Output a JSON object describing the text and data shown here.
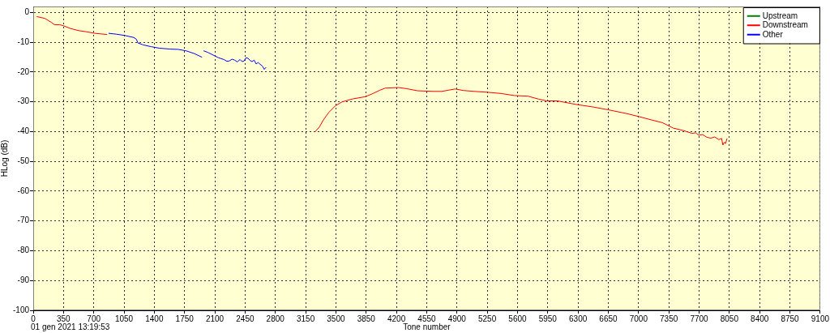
{
  "chart_data": {
    "type": "line",
    "xlabel": "Tone number",
    "ylabel": "HLog (dB)",
    "xlim": [
      0,
      9100
    ],
    "xticks": [
      0,
      350,
      700,
      1050,
      1400,
      1750,
      2100,
      2450,
      2800,
      3150,
      3500,
      3850,
      4200,
      4550,
      4900,
      5250,
      5600,
      5950,
      6300,
      6650,
      7000,
      7350,
      7700,
      8050,
      8400,
      8750,
      9100
    ],
    "ylim": [
      -100,
      2
    ],
    "yticks": [
      0,
      -10,
      -20,
      -30,
      -40,
      -50,
      -60,
      -70,
      -80,
      -90,
      -100
    ],
    "grid": true,
    "legend": "top right",
    "marker": "none",
    "annotations": [
      "01 gen 2021 13:19:53"
    ],
    "series": [
      {
        "name": "Upstream",
        "color": "#008000"
      },
      {
        "name": "Downstream",
        "color": "#ff0000",
        "x": [
          42,
          135,
          213,
          245,
          306,
          353,
          431,
          525,
          618,
          711,
          851,
          2000,
          3261,
          3308,
          3355,
          3417,
          3495,
          3573,
          3698,
          3838,
          3915,
          4009,
          4071,
          4226,
          4319,
          4444,
          4631,
          4724,
          4802,
          4879,
          4973,
          5098,
          5253,
          5409,
          5564,
          5720,
          5844,
          5938,
          6062,
          6279,
          6466,
          6652,
          6870,
          6995,
          7151,
          7275,
          7399,
          7524,
          7617,
          7660,
          7695,
          7740,
          7790,
          7835,
          7880,
          7929,
          7960,
          7975,
          7990,
          8006,
          8022
        ],
        "values": [
          -1.4,
          -2.0,
          -3.4,
          -4.1,
          -4.1,
          -4.5,
          -5.4,
          -6.1,
          -6.5,
          -7.0,
          -7.4,
          null,
          -40.0,
          -38.5,
          -36.1,
          -33.6,
          -31.3,
          -30.0,
          -29.0,
          -28.3,
          -27.4,
          -26.1,
          -25.4,
          -25.2,
          -25.6,
          -26.3,
          -26.5,
          -26.5,
          -26.1,
          -25.7,
          -26.2,
          -26.5,
          -26.8,
          -27.2,
          -27.9,
          -28.1,
          -29.1,
          -29.7,
          -29.7,
          -30.9,
          -31.7,
          -32.7,
          -34.0,
          -34.9,
          -36.1,
          -37.0,
          -38.8,
          -39.7,
          -40.6,
          -40.4,
          -41.2,
          -41.0,
          -41.9,
          -42.2,
          -41.8,
          -42.7,
          -42.3,
          -44.5,
          -43.6,
          -44.0,
          -42.4
        ]
      },
      {
        "name": "Other",
        "color": "#0000ff",
        "x": [
          873,
          960,
          1053,
          1162,
          1193,
          1209,
          1271,
          1365,
          1458,
          1582,
          1675,
          1769,
          1862,
          1949,
          1960,
          1971,
          2018,
          2080,
          2142,
          2204,
          2240,
          2266,
          2300,
          2329,
          2360,
          2391,
          2415,
          2438,
          2460,
          2484,
          2510,
          2531,
          2555,
          2578,
          2600,
          2624,
          2650,
          2671,
          2690
        ],
        "values": [
          -7.0,
          -7.3,
          -7.7,
          -8.4,
          -9.0,
          -10.2,
          -10.9,
          -11.5,
          -12.0,
          -12.3,
          -12.4,
          -12.9,
          -13.8,
          -15.0,
          null,
          -12.9,
          -13.4,
          -14.3,
          -15.2,
          -15.8,
          -16.4,
          -16.3,
          -15.7,
          -16.0,
          -16.6,
          -15.8,
          -16.5,
          -16.3,
          -15.2,
          -15.4,
          -16.2,
          -16.5,
          -16.0,
          -17.3,
          -16.8,
          -17.4,
          -18.0,
          -19.1,
          -18.5
        ]
      }
    ]
  }
}
